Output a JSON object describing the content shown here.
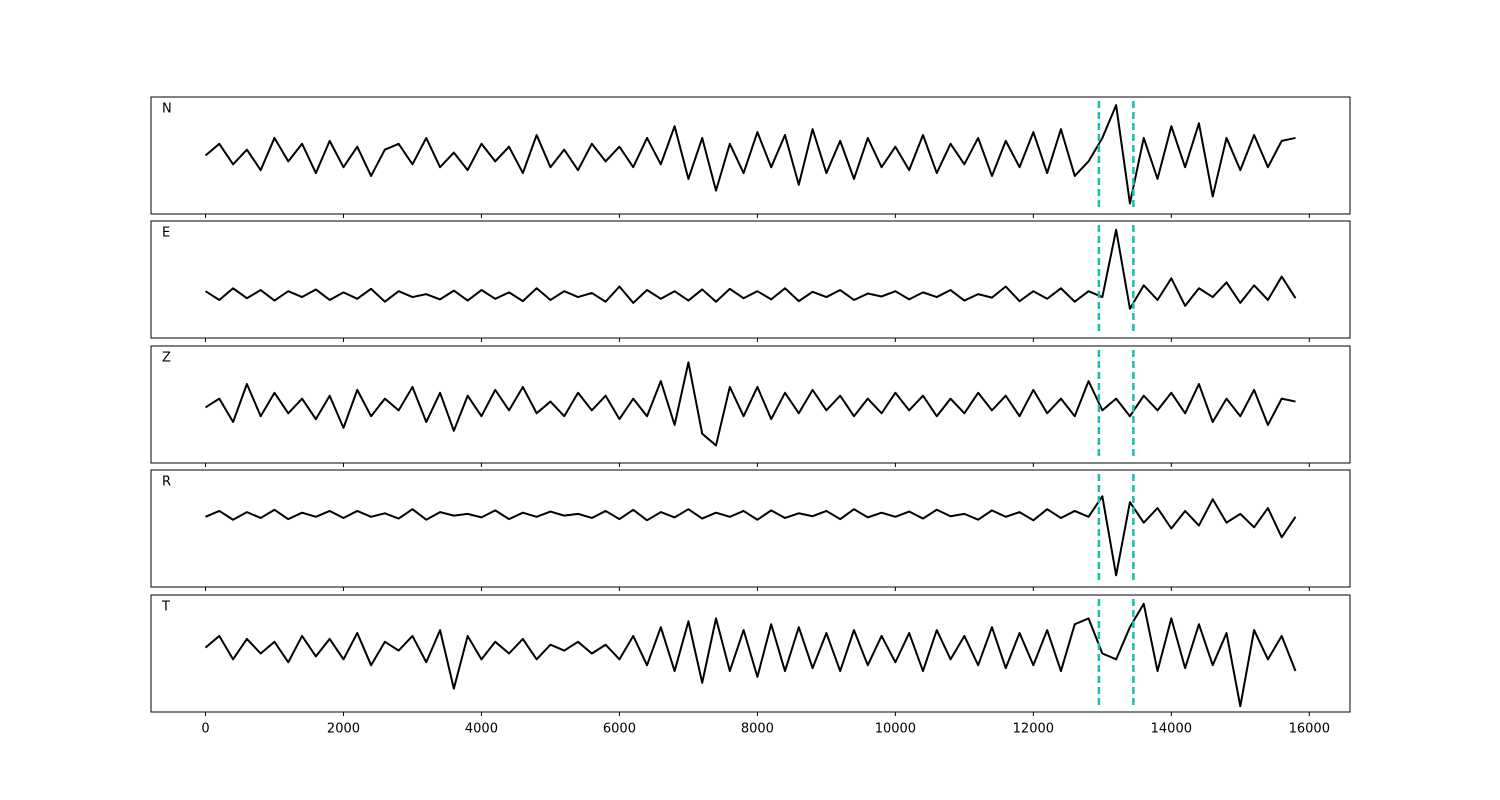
{
  "chart_data": {
    "type": "line",
    "x": [
      0,
      200,
      400,
      600,
      800,
      1000,
      1200,
      1400,
      1600,
      1800,
      2000,
      2200,
      2400,
      2600,
      2800,
      3000,
      3200,
      3400,
      3600,
      3800,
      4000,
      4200,
      4400,
      4600,
      4800,
      5000,
      5200,
      5400,
      5600,
      5800,
      6000,
      6200,
      6400,
      6600,
      6800,
      7000,
      7200,
      7400,
      7600,
      7800,
      8000,
      8200,
      8400,
      8600,
      8800,
      9000,
      9200,
      9400,
      9600,
      9800,
      10000,
      10200,
      10400,
      10600,
      10800,
      11000,
      11200,
      11400,
      11600,
      11800,
      12000,
      12200,
      12400,
      12600,
      12800,
      13000,
      13200,
      13400,
      13600,
      13800,
      14000,
      14200,
      14400,
      14600,
      14800,
      15000,
      15200,
      15400,
      15600,
      15800
    ],
    "xlim": [
      -790,
      16590
    ],
    "xticks": [
      0,
      2000,
      4000,
      6000,
      8000,
      10000,
      12000,
      14000,
      16000
    ],
    "ylim": [
      -1,
      1
    ],
    "series": [
      {
        "name": "N",
        "color": "#000000",
        "values": [
          0.0,
          0.2,
          -0.15,
          0.1,
          -0.25,
          0.3,
          -0.1,
          0.2,
          -0.3,
          0.25,
          -0.2,
          0.15,
          -0.35,
          0.1,
          0.2,
          -0.15,
          0.3,
          -0.2,
          0.05,
          -0.25,
          0.2,
          -0.1,
          0.15,
          -0.3,
          0.35,
          -0.2,
          0.1,
          -0.25,
          0.2,
          -0.1,
          0.15,
          -0.2,
          0.3,
          -0.15,
          0.5,
          -0.4,
          0.3,
          -0.6,
          0.2,
          -0.3,
          0.4,
          -0.2,
          0.35,
          -0.5,
          0.45,
          -0.3,
          0.25,
          -0.4,
          0.3,
          -0.2,
          0.15,
          -0.25,
          0.35,
          -0.3,
          0.2,
          -0.15,
          0.3,
          -0.35,
          0.25,
          -0.2,
          0.4,
          -0.3,
          0.45,
          -0.35,
          -0.1,
          0.3,
          0.86,
          -0.82,
          0.3,
          -0.4,
          0.5,
          -0.2,
          0.55,
          -0.7,
          0.3,
          -0.25,
          0.35,
          -0.2,
          0.25,
          0.3
        ]
      },
      {
        "name": "E",
        "color": "#000000",
        "values": [
          -0.2,
          -0.35,
          -0.15,
          -0.32,
          -0.18,
          -0.36,
          -0.2,
          -0.3,
          -0.17,
          -0.35,
          -0.22,
          -0.33,
          -0.16,
          -0.38,
          -0.2,
          -0.3,
          -0.25,
          -0.34,
          -0.19,
          -0.36,
          -0.18,
          -0.33,
          -0.22,
          -0.37,
          -0.15,
          -0.35,
          -0.2,
          -0.3,
          -0.23,
          -0.38,
          -0.12,
          -0.4,
          -0.18,
          -0.33,
          -0.2,
          -0.36,
          -0.17,
          -0.38,
          -0.16,
          -0.32,
          -0.2,
          -0.34,
          -0.15,
          -0.37,
          -0.21,
          -0.3,
          -0.18,
          -0.35,
          -0.24,
          -0.29,
          -0.2,
          -0.34,
          -0.22,
          -0.3,
          -0.18,
          -0.36,
          -0.25,
          -0.31,
          -0.12,
          -0.37,
          -0.2,
          -0.33,
          -0.15,
          -0.38,
          -0.2,
          -0.3,
          0.85,
          -0.5,
          -0.1,
          -0.35,
          0.02,
          -0.45,
          -0.15,
          -0.3,
          -0.05,
          -0.4,
          -0.1,
          -0.35,
          0.05,
          -0.32
        ]
      },
      {
        "name": "Z",
        "color": "#000000",
        "values": [
          -0.05,
          0.1,
          -0.3,
          0.35,
          -0.2,
          0.2,
          -0.15,
          0.1,
          -0.25,
          0.15,
          -0.4,
          0.25,
          -0.2,
          0.1,
          -0.1,
          0.3,
          -0.3,
          0.2,
          -0.45,
          0.15,
          -0.2,
          0.25,
          -0.1,
          0.3,
          -0.15,
          0.05,
          -0.2,
          0.2,
          -0.1,
          0.15,
          -0.25,
          0.1,
          -0.2,
          0.4,
          -0.35,
          0.72,
          -0.5,
          -0.7,
          0.3,
          -0.2,
          0.3,
          -0.25,
          0.2,
          -0.15,
          0.25,
          -0.1,
          0.15,
          -0.2,
          0.1,
          -0.15,
          0.2,
          -0.1,
          0.15,
          -0.2,
          0.1,
          -0.15,
          0.2,
          -0.1,
          0.15,
          -0.2,
          0.25,
          -0.15,
          0.1,
          -0.2,
          0.4,
          -0.1,
          0.1,
          -0.2,
          0.15,
          -0.1,
          0.2,
          -0.15,
          0.35,
          -0.3,
          0.1,
          -0.2,
          0.25,
          -0.35,
          0.1,
          0.05
        ]
      },
      {
        "name": "R",
        "color": "#000000",
        "values": [
          0.2,
          0.3,
          0.15,
          0.28,
          0.18,
          0.32,
          0.16,
          0.27,
          0.2,
          0.3,
          0.18,
          0.3,
          0.2,
          0.26,
          0.17,
          0.33,
          0.15,
          0.28,
          0.22,
          0.25,
          0.19,
          0.31,
          0.16,
          0.27,
          0.2,
          0.29,
          0.22,
          0.25,
          0.18,
          0.3,
          0.16,
          0.32,
          0.14,
          0.28,
          0.19,
          0.33,
          0.17,
          0.27,
          0.2,
          0.3,
          0.15,
          0.31,
          0.18,
          0.26,
          0.21,
          0.3,
          0.16,
          0.33,
          0.19,
          0.27,
          0.2,
          0.29,
          0.17,
          0.32,
          0.21,
          0.25,
          0.15,
          0.31,
          0.2,
          0.28,
          0.14,
          0.33,
          0.18,
          0.3,
          0.2,
          0.55,
          -0.8,
          0.45,
          0.1,
          0.35,
          0.0,
          0.3,
          0.05,
          0.5,
          0.1,
          0.25,
          0.02,
          0.35,
          -0.15,
          0.2
        ]
      },
      {
        "name": "T",
        "color": "#000000",
        "values": [
          0.1,
          0.3,
          -0.1,
          0.25,
          0.0,
          0.2,
          -0.15,
          0.3,
          -0.05,
          0.25,
          -0.1,
          0.35,
          -0.2,
          0.2,
          0.05,
          0.3,
          -0.15,
          0.4,
          -0.6,
          0.3,
          -0.1,
          0.2,
          0.0,
          0.25,
          -0.1,
          0.15,
          0.05,
          0.2,
          0.0,
          0.15,
          -0.1,
          0.3,
          -0.2,
          0.45,
          -0.3,
          0.55,
          -0.5,
          0.6,
          -0.3,
          0.4,
          -0.4,
          0.5,
          -0.3,
          0.45,
          -0.25,
          0.35,
          -0.3,
          0.4,
          -0.2,
          0.3,
          -0.15,
          0.35,
          -0.3,
          0.4,
          -0.1,
          0.3,
          -0.2,
          0.45,
          -0.25,
          0.35,
          -0.2,
          0.4,
          -0.3,
          0.5,
          0.6,
          0.0,
          -0.1,
          0.45,
          0.85,
          -0.3,
          0.6,
          -0.25,
          0.5,
          -0.2,
          0.35,
          -0.9,
          0.4,
          -0.1,
          0.3,
          -0.3
        ]
      }
    ],
    "markers": [
      12950,
      13450
    ],
    "marker_color": "#17bfb0"
  }
}
